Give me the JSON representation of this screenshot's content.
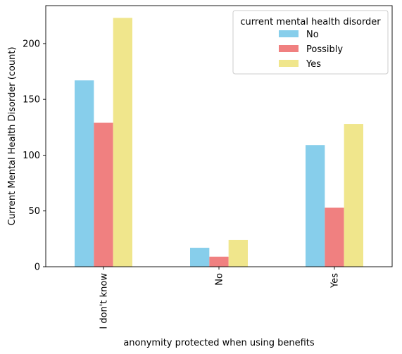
{
  "chart_data": {
    "type": "bar",
    "categories": [
      "I don't know",
      "No",
      "Yes"
    ],
    "series": [
      {
        "name": "No",
        "color": "#87ceeb",
        "values": [
          167,
          17,
          109
        ]
      },
      {
        "name": "Possibly",
        "color": "#f08080",
        "values": [
          129,
          9,
          53
        ]
      },
      {
        "name": "Yes",
        "color": "#f0e68c",
        "values": [
          223,
          24,
          128
        ]
      }
    ],
    "xlabel": "anonymity protected when using benefits",
    "ylabel": "Current Mental Health Disorder (count)",
    "ylim": [
      0,
      234
    ],
    "yticks": [
      0,
      50,
      100,
      150,
      200
    ],
    "legend_title": "current mental health disorder",
    "legend_position": "top-right",
    "grid": false
  }
}
